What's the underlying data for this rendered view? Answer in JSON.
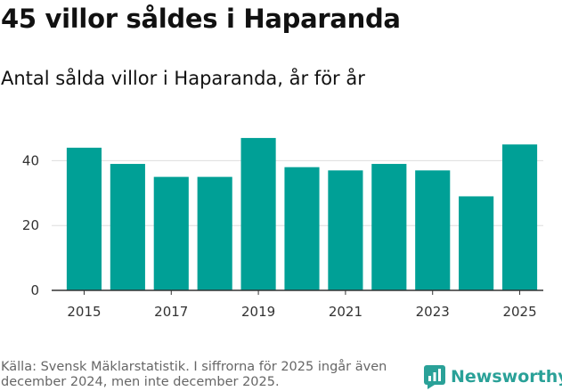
{
  "header": {
    "title": "45 villor såldes i Haparanda",
    "subtitle": "Antal sålda villor i Haparanda, år för år"
  },
  "footer": {
    "source": "Källa: Svensk Mäklarstatistik. I siffrorna för 2025 ingår även december 2024, men inte december 2025.",
    "brand": "Newsworthy",
    "brand_icon": "newsworthy-logo-icon"
  },
  "colors": {
    "bar": "#00a096",
    "grid": "#dddddd",
    "axis": "#333333",
    "brand": "#2aa198"
  },
  "chart_data": {
    "type": "bar",
    "title": "Antal sålda villor i Haparanda, år för år",
    "xlabel": "",
    "ylabel": "",
    "categories": [
      "2015",
      "2016",
      "2017",
      "2018",
      "2019",
      "2020",
      "2021",
      "2022",
      "2023",
      "2024",
      "2025"
    ],
    "values": [
      44,
      39,
      35,
      35,
      47,
      38,
      37,
      39,
      37,
      29,
      45
    ],
    "x_tick_labels": [
      "2015",
      "2017",
      "2019",
      "2021",
      "2023",
      "2025"
    ],
    "y_ticks": [
      0,
      20,
      40
    ],
    "ylim": [
      0,
      50
    ],
    "grid": true,
    "legend": "none"
  }
}
